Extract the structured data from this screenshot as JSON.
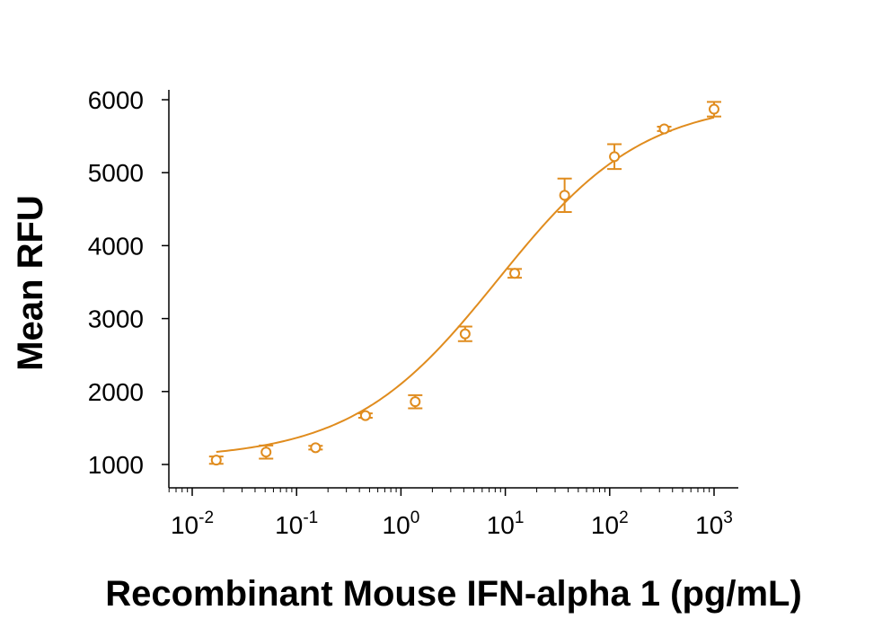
{
  "chart_data": {
    "type": "scatter",
    "xlabel": "Recombinant Mouse IFN-alpha 1 (pg/mL)",
    "ylabel": "Mean RFU",
    "x_scale": "log",
    "xlim": [
      0.01,
      1000
    ],
    "ylim": [
      800,
      6200
    ],
    "x_ticks": [
      {
        "base": "10",
        "exp": "-2"
      },
      {
        "base": "10",
        "exp": "-1"
      },
      {
        "base": "10",
        "exp": "0"
      },
      {
        "base": "10",
        "exp": "1"
      },
      {
        "base": "10",
        "exp": "2"
      },
      {
        "base": "10",
        "exp": "3"
      }
    ],
    "y_ticks": [
      "1000",
      "2000",
      "3000",
      "4000",
      "5000",
      "6000"
    ],
    "grid": false,
    "legend": "none",
    "color": "#E08C1E",
    "series": [
      {
        "x": [
          0.017,
          0.051,
          0.152,
          0.457,
          1.37,
          4.12,
          12.3,
          37.0,
          111,
          333,
          1000
        ],
        "y": [
          1060,
          1170,
          1230,
          1670,
          1860,
          2790,
          3620,
          4690,
          5220,
          5600,
          5870
        ],
        "error": [
          50,
          90,
          25,
          30,
          90,
          100,
          60,
          230,
          170,
          30,
          100
        ]
      }
    ],
    "fit_curve": {
      "model": "4PL",
      "bottom": 1070,
      "top": 6000,
      "ec50": 8.5,
      "hill": 0.62
    }
  }
}
